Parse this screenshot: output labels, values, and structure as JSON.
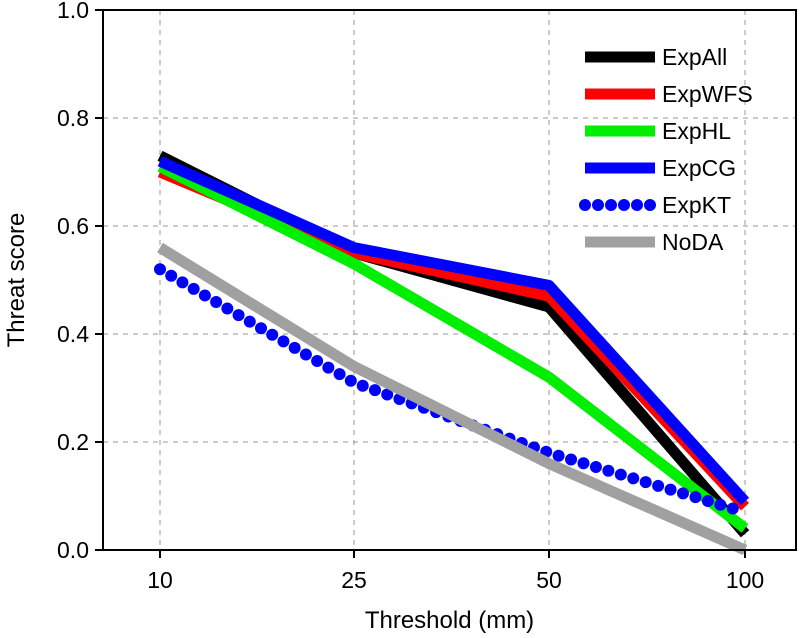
{
  "chart_data": {
    "type": "line",
    "categories": [
      "10",
      "25",
      "50",
      "100"
    ],
    "xlabel": "Threshold (mm)",
    "ylabel": "Threat score",
    "ylim": [
      0.0,
      1.0
    ],
    "yticks": [
      "0.0",
      "0.2",
      "0.4",
      "0.6",
      "0.8",
      "1.0"
    ],
    "grid": true,
    "legend_position": "top-right",
    "series": [
      {
        "name": "ExpAll",
        "color": "#000000",
        "style": "solid",
        "values": [
          0.73,
          0.55,
          0.45,
          0.03
        ]
      },
      {
        "name": "ExpWFS",
        "color": "#ff0000",
        "style": "solid",
        "values": [
          0.7,
          0.55,
          0.47,
          0.08
        ]
      },
      {
        "name": "ExpHL",
        "color": "#00ee00",
        "style": "solid",
        "values": [
          0.71,
          0.53,
          0.32,
          0.04
        ]
      },
      {
        "name": "ExpCG",
        "color": "#0000ff",
        "style": "solid",
        "values": [
          0.72,
          0.56,
          0.49,
          0.09
        ]
      },
      {
        "name": "ExpKT",
        "color": "#0000ff",
        "style": "dotted",
        "values": [
          0.52,
          0.31,
          0.18,
          0.07
        ]
      },
      {
        "name": "NoDA",
        "color": "#a0a0a0",
        "style": "solid",
        "values": [
          0.56,
          0.34,
          0.16,
          0.0
        ]
      }
    ]
  }
}
